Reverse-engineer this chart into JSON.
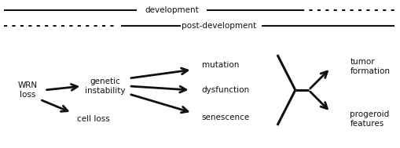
{
  "bg_color": "#ffffff",
  "text_color": "#111111",
  "fig_width": 5.1,
  "fig_height": 1.89,
  "dpi": 100,
  "labels": {
    "development": "development",
    "post_development": "post-development",
    "wrn_loss": "WRN\nloss",
    "genetic_instability": "genetic\ninstability",
    "cell_loss": "cell loss",
    "mutation": "mutation",
    "dysfunction": "dysfunction",
    "senescence": "senescence",
    "tumor_formation": "tumor\nformation",
    "progeroid_features": "progeroid\nfeatures"
  },
  "line_color": "#111111",
  "font_size": 7.5
}
